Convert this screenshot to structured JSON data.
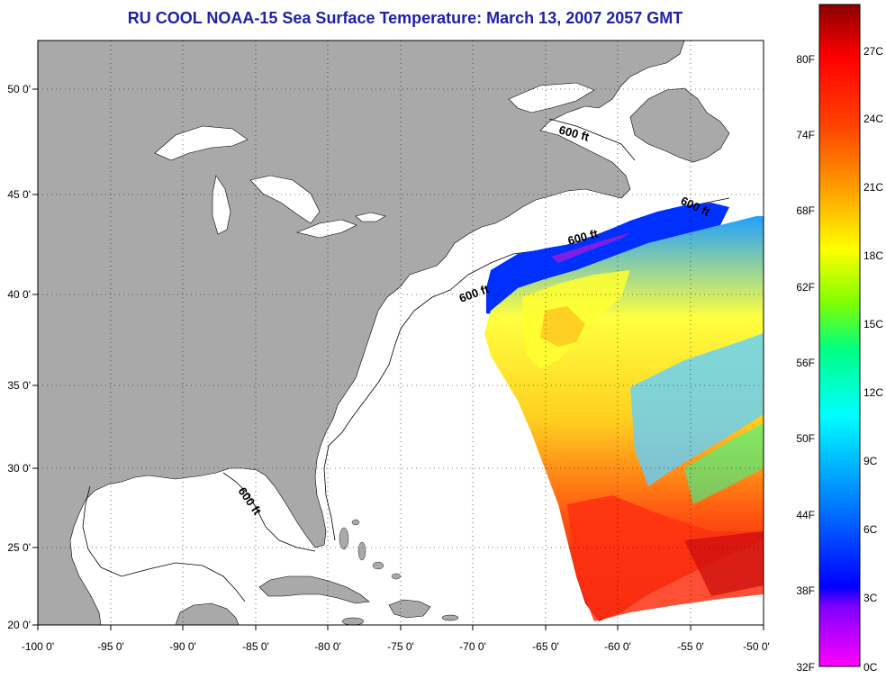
{
  "title": "RU COOL  NOAA-15  Sea Surface Temperature:  March 13, 2007 2057 GMT",
  "map": {
    "lon_range": [
      -100,
      -50
    ],
    "lat_range": [
      20,
      52.5
    ],
    "lon_ticks": [
      "-100 0'",
      "-95 0'",
      "-90 0'",
      "-85 0'",
      "-80 0'",
      "-75 0'",
      "-70 0'",
      "-65 0'",
      "-60 0'",
      "-55 0'",
      "-50 0'"
    ],
    "lat_ticks": [
      "20 0'",
      "25 0'",
      "30 0'",
      "35 0'",
      "40 0'",
      "45 0'",
      "50 0'"
    ],
    "land_color": "#a9a9a9",
    "water_color": "#ffffff",
    "grid": "dotted",
    "contour_labels": [
      "600 ft",
      "600 ft",
      "600 ft",
      "600 ft",
      "600 ft"
    ]
  },
  "colorbar": {
    "fahrenheit_labels": [
      "80F",
      "74F",
      "68F",
      "62F",
      "56F",
      "50F",
      "44F",
      "38F",
      "32F"
    ],
    "celsius_labels": [
      "27C",
      "24C",
      "21C",
      "18C",
      "15C",
      "12C",
      "9C",
      "6C",
      "3C",
      "0C"
    ],
    "range_celsius": [
      0,
      29
    ],
    "colors": [
      "#ff00ff",
      "#8000ff",
      "#0000ff",
      "#0080ff",
      "#00ffff",
      "#00ff80",
      "#80ff00",
      "#ffff00",
      "#ffa000",
      "#ff4000",
      "#ff0000",
      "#8b0000"
    ]
  }
}
